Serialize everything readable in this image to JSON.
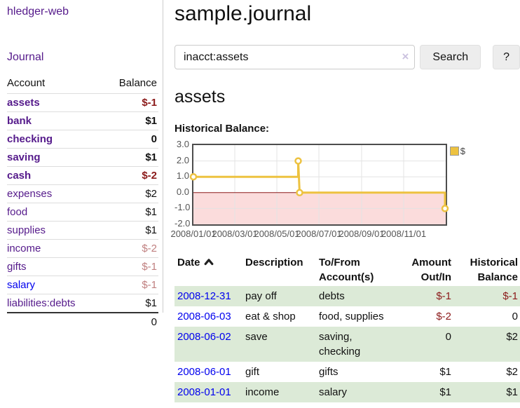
{
  "app": {
    "brand": "hledger-web",
    "nav": {
      "journal_label": "Journal"
    }
  },
  "sidebar": {
    "accounts_header": {
      "account": "Account",
      "balance": "Balance"
    },
    "accounts": [
      {
        "name": "assets",
        "indent": 1,
        "bold": true,
        "balance": "$-1",
        "balance_style": "negative",
        "link_color": "purple"
      },
      {
        "name": "bank",
        "indent": 2,
        "bold": true,
        "balance": "$1",
        "balance_style": "normal",
        "link_color": "purple"
      },
      {
        "name": "checking",
        "indent": 3,
        "bold": true,
        "balance": "0",
        "balance_style": "normal",
        "link_color": "purple"
      },
      {
        "name": "saving",
        "indent": 3,
        "bold": true,
        "balance": "$1",
        "balance_style": "normal",
        "link_color": "purple"
      },
      {
        "name": "cash",
        "indent": 2,
        "bold": true,
        "balance": "$-2",
        "balance_style": "negative",
        "link_color": "purple"
      },
      {
        "name": "expenses",
        "indent": 1,
        "bold": false,
        "balance": "$2",
        "balance_style": "normal",
        "link_color": "purple"
      },
      {
        "name": "food",
        "indent": 2,
        "bold": false,
        "balance": "$1",
        "balance_style": "normal",
        "link_color": "purple"
      },
      {
        "name": "supplies",
        "indent": 2,
        "bold": false,
        "balance": "$1",
        "balance_style": "normal",
        "link_color": "purple"
      },
      {
        "name": "income",
        "indent": 1,
        "bold": false,
        "balance": "$-2",
        "balance_style": "negative-dim",
        "link_color": "purple"
      },
      {
        "name": "gifts",
        "indent": 2,
        "bold": false,
        "balance": "$-1",
        "balance_style": "negative-dim",
        "link_color": "purple"
      },
      {
        "name": "salary",
        "indent": 2,
        "bold": false,
        "balance": "$-1",
        "balance_style": "negative-dim",
        "link_color": "blue"
      },
      {
        "name": "liabilities:debts",
        "indent": 1,
        "bold": false,
        "balance": "$1",
        "balance_style": "normal",
        "link_color": "purple"
      }
    ],
    "total": "0"
  },
  "header": {
    "title": "sample.journal"
  },
  "search": {
    "value": "inacct:assets",
    "clear_icon": "×",
    "button_label": "Search",
    "help_button_label": "?"
  },
  "account_page": {
    "heading": "assets",
    "chart_title": "Historical Balance:"
  },
  "chart_data": {
    "type": "line",
    "title": "Historical Balance:",
    "x_range": [
      "2008-01-01",
      "2009-01-01"
    ],
    "ylim": [
      -2,
      3
    ],
    "y_ticks": [
      "3.0",
      "2.0",
      "1.0",
      "0.0",
      "-1.0",
      "-2.0"
    ],
    "x_tick_dates": [
      "2008-01-01",
      "2008-03-01",
      "2008-05-01",
      "2008-07-01",
      "2008-09-01",
      "2008-11-01"
    ],
    "x_tick_labels": [
      "2008/01/01",
      "2008/03/01",
      "2008/05/01",
      "2008/07/01",
      "2008/09/01",
      "2008/11/01"
    ],
    "grid": true,
    "series": [
      {
        "name": "$",
        "color": "#EDC240",
        "step": true,
        "points": [
          {
            "date": "2008-01-01",
            "value": 1
          },
          {
            "date": "2008-06-01",
            "value": 1
          },
          {
            "date": "2008-06-01",
            "value": 2
          },
          {
            "date": "2008-06-03",
            "value": 0
          },
          {
            "date": "2008-12-31",
            "value": 0
          },
          {
            "date": "2008-12-31",
            "value": -1
          }
        ],
        "marker_points": [
          {
            "date": "2008-01-01",
            "value": 1
          },
          {
            "date": "2008-06-01",
            "value": 2
          },
          {
            "date": "2008-06-03",
            "value": 0
          },
          {
            "date": "2008-12-31",
            "value": -1
          }
        ]
      }
    ],
    "legend": {
      "label": "$",
      "position": "top-right"
    },
    "negative_region_color": "#FBDCDC",
    "zero_line_color": "#8B1A1A",
    "grid_color": "#e3e3e3"
  },
  "register": {
    "columns": {
      "date": "Date",
      "description": "Description",
      "accounts": "To/From Account(s)",
      "amount": "Amount Out/In",
      "balance": "Historical Balance"
    },
    "sort": {
      "column": "date",
      "direction": "asc-icon"
    },
    "rows": [
      {
        "date": "2008-12-31",
        "description": "pay off",
        "accounts_lines": [
          "debts"
        ],
        "amount": "$-1",
        "amount_negative": true,
        "balance": "$-1",
        "balance_negative": true,
        "shaded": true
      },
      {
        "date": "2008-06-03",
        "description": "eat & shop",
        "accounts_lines": [
          "food, supplies"
        ],
        "amount": "$-2",
        "amount_negative": true,
        "balance": "0",
        "balance_negative": false,
        "shaded": false
      },
      {
        "date": "2008-06-02",
        "description": "save",
        "accounts_lines": [
          "saving,",
          "checking"
        ],
        "amount": "0",
        "amount_negative": false,
        "balance": "$2",
        "balance_negative": false,
        "shaded": true
      },
      {
        "date": "2008-06-01",
        "description": "gift",
        "accounts_lines": [
          "gifts"
        ],
        "amount": "$1",
        "amount_negative": false,
        "balance": "$2",
        "balance_negative": false,
        "shaded": false
      },
      {
        "date": "2008-01-01",
        "description": "income",
        "accounts_lines": [
          "salary"
        ],
        "amount": "$1",
        "amount_negative": false,
        "balance": "$1",
        "balance_negative": false,
        "shaded": true
      }
    ]
  },
  "colors": {
    "link_purple": "#551A8B",
    "link_blue": "#0000EE",
    "negative": "#8B1A1A",
    "negative_dim": "#C08080",
    "row_stripe_green": "#dcead7",
    "series_gold": "#EDC240"
  }
}
